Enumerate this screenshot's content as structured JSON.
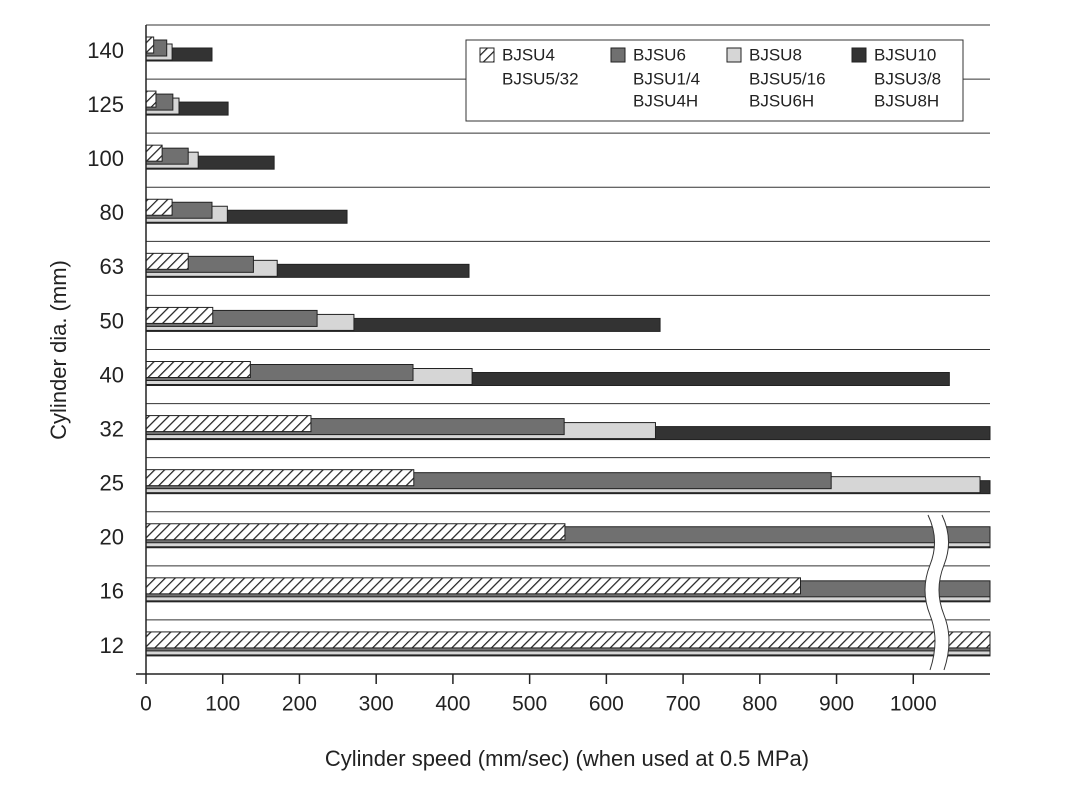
{
  "chart_data": {
    "type": "bar",
    "orientation": "horizontal",
    "x_label": "Cylinder speed (mm/sec) (when used at 0.5 MPa)",
    "y_label": "Cylinder dia. (mm)",
    "categories": [
      "140",
      "125",
      "100",
      "80",
      "63",
      "50",
      "40",
      "32",
      "25",
      "20",
      "16",
      "12"
    ],
    "xlim": [
      0,
      1100
    ],
    "xticks": [
      0,
      100,
      200,
      300,
      400,
      500,
      600,
      700,
      800,
      900,
      1000
    ],
    "series": [
      {
        "name": "BJSU4",
        "aliases": [
          "BJSU5/32"
        ],
        "color": "hatch",
        "values": [
          10,
          13,
          21,
          34,
          55,
          87,
          136,
          215,
          349,
          546,
          853,
          1100
        ]
      },
      {
        "name": "BJSU6",
        "aliases": [
          "BJSU1/4",
          "BJSU4H"
        ],
        "color": "#707070",
        "values": [
          27,
          35,
          55,
          86,
          140,
          223,
          348,
          545,
          893,
          1100,
          1100,
          1100
        ]
      },
      {
        "name": "BJSU8",
        "aliases": [
          "BJSU5/16",
          "BJSU6H"
        ],
        "color": "#d6d6d6",
        "values": [
          34,
          43,
          68,
          106,
          171,
          271,
          425,
          664,
          1087,
          1100,
          1100,
          1100
        ]
      },
      {
        "name": "BJSU10",
        "aliases": [
          "BJSU3/8",
          "BJSU8H"
        ],
        "color": "#333333",
        "values": [
          86,
          107,
          167,
          262,
          421,
          670,
          1047,
          1100,
          1100,
          1100,
          1100,
          1100
        ]
      }
    ]
  }
}
